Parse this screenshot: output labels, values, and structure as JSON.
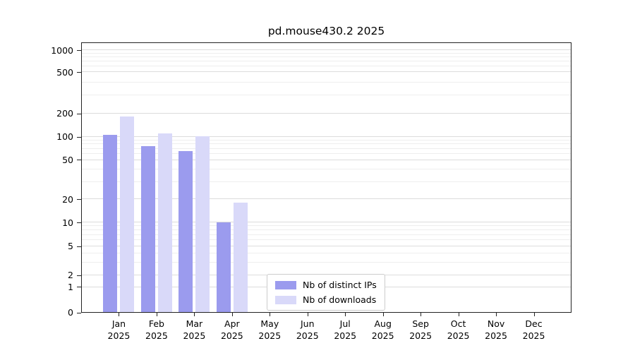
{
  "chart_data": {
    "type": "bar",
    "title": "pd.mouse430.2 2025",
    "categories": [
      "Jan",
      "Feb",
      "Mar",
      "Apr",
      "May",
      "Jun",
      "Jul",
      "Aug",
      "Sep",
      "Oct",
      "Nov",
      "Dec"
    ],
    "year": "2025",
    "series": [
      {
        "name": "Nb of distinct IPs",
        "color": "#9b9bee",
        "values": [
          105,
          75,
          65,
          10,
          0,
          0,
          0,
          0,
          0,
          0,
          0,
          0
        ]
      },
      {
        "name": "Nb of downloads",
        "color": "#d9d9f9",
        "values": [
          180,
          110,
          100,
          18,
          0,
          0,
          0,
          0,
          0,
          0,
          0,
          0
        ]
      }
    ],
    "yticks": [
      0,
      1,
      2,
      5,
      10,
      20,
      50,
      100,
      200,
      500,
      1000
    ],
    "scale": "symlog",
    "grid": true,
    "legend_position": "bottom-center-inside",
    "xlabel": "",
    "ylabel": "",
    "ylim": [
      0,
      1100
    ],
    "axis_color": "#222222",
    "grid_major_color": "#dcdcdc",
    "grid_minor_color": "#eeeeee"
  }
}
